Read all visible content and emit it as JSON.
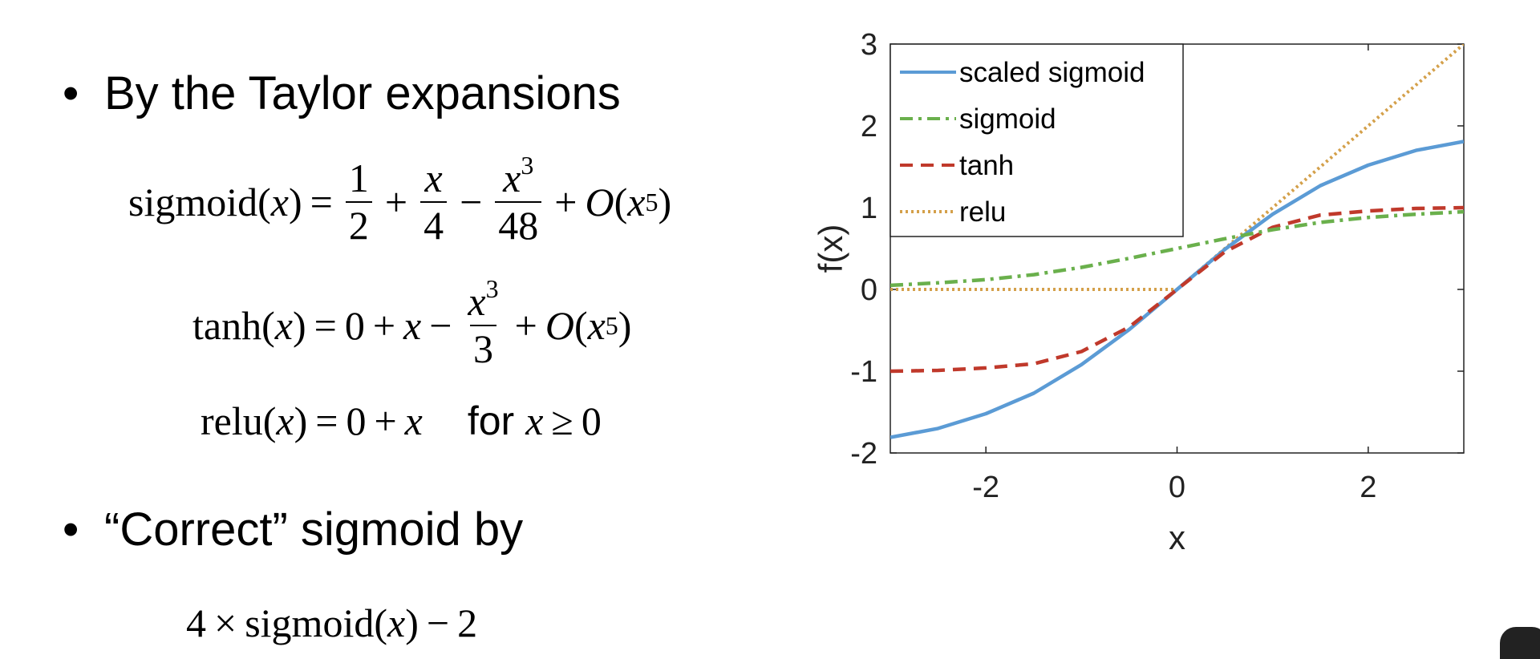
{
  "slide": {
    "bullet1": "By the Taylor expansions",
    "bullet2": "“Correct” sigmoid by",
    "bullet_symbol": "•"
  },
  "equations": {
    "sigmoid": {
      "lhs_fn": "sigmoid",
      "lhs_arg": "x",
      "eq": "=",
      "t1_num": "1",
      "t1_den": "2",
      "plus1": "+",
      "t2_num": "x",
      "t2_den": "4",
      "minus1": "−",
      "t3_num_base": "x",
      "t3_num_exp": "3",
      "t3_den": "48",
      "plus2": "+",
      "big_o": "O",
      "o_arg_base": "x",
      "o_arg_exp": "5"
    },
    "tanh": {
      "lhs_fn": "tanh",
      "lhs_arg": "x",
      "eq": "=",
      "t0": "0",
      "plus1": "+",
      "t1": "x",
      "minus1": "−",
      "t2_num_base": "x",
      "t2_num_exp": "3",
      "t2_den": "3",
      "plus2": "+",
      "big_o": "O",
      "o_arg_base": "x",
      "o_arg_exp": "5"
    },
    "relu": {
      "lhs_fn": "relu",
      "lhs_arg": "x",
      "eq": "=",
      "t0": "0",
      "plus1": "+",
      "t1": "x",
      "for_text": "for",
      "cond_var": "x",
      "cond_op": "≥",
      "cond_val": "0"
    },
    "corrected": {
      "coef": "4",
      "times": "×",
      "fn": "sigmoid",
      "arg": "x",
      "minus": "−",
      "const": "2"
    }
  },
  "chart_data": {
    "type": "line",
    "xlabel": "x",
    "ylabel": "f(x)",
    "xlim": [
      -3,
      3
    ],
    "ylim": [
      -2,
      3
    ],
    "xticks": [
      -2,
      0,
      2
    ],
    "yticks": [
      -2,
      -1,
      0,
      1,
      2,
      3
    ],
    "xtick_labels": [
      "-2",
      "0",
      "2"
    ],
    "ytick_labels": [
      "-2",
      "-1",
      "0",
      "1",
      "2",
      "3"
    ],
    "legend_position": "top-left",
    "grid": false,
    "x": [
      -3,
      -2.5,
      -2,
      -1.5,
      -1,
      -0.5,
      0,
      0.5,
      1,
      1.5,
      2,
      2.5,
      3
    ],
    "series": [
      {
        "name": "scaled sigmoid",
        "color": "#5b9bd5",
        "dash": "solid",
        "values": [
          -1.81,
          -1.7,
          -1.52,
          -1.27,
          -0.92,
          -0.49,
          0.0,
          0.49,
          0.92,
          1.27,
          1.52,
          1.7,
          1.81
        ]
      },
      {
        "name": "sigmoid",
        "color": "#6ab04c",
        "dash": "dashdot",
        "values": [
          0.05,
          0.08,
          0.12,
          0.18,
          0.27,
          0.38,
          0.5,
          0.62,
          0.73,
          0.82,
          0.88,
          0.92,
          0.95
        ]
      },
      {
        "name": "tanh",
        "color": "#c0392b",
        "dash": "dashed",
        "values": [
          -1.0,
          -0.99,
          -0.96,
          -0.91,
          -0.76,
          -0.46,
          0.0,
          0.46,
          0.76,
          0.91,
          0.96,
          0.99,
          1.0
        ]
      },
      {
        "name": "relu",
        "color": "#d4a04a",
        "dash": "dotted",
        "values": [
          0,
          0,
          0,
          0,
          0,
          0,
          0,
          0.5,
          1.0,
          1.5,
          2.0,
          2.5,
          3.0
        ]
      }
    ]
  }
}
